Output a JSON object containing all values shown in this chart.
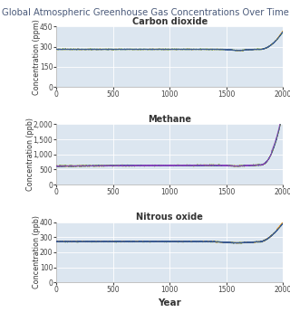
{
  "title": "Global Atmospheric Greenhouse Gas Concentrations Over Time",
  "title_color": "#4a5a7a",
  "title_fontsize": 7.2,
  "subplot_titles": [
    "Carbon dioxide",
    "Methane",
    "Nitrous oxide"
  ],
  "subplot_title_fontsize": 7,
  "xlabel": "Year",
  "xlabel_fontsize": 7.5,
  "ylabel_co2": "Concentration (ppm)",
  "ylabel_ch4": "Concentration (ppb)",
  "ylabel_n2o": "Concentration (ppb)",
  "ylabel_fontsize": 5.8,
  "bg_color": "#dce6f0",
  "fig_bg_color": "#ffffff",
  "line_blue": "#2855a0",
  "line_green": "#7db33a",
  "line_orange": "#f5a000",
  "line_purple": "#9040c0",
  "line_red": "#cc2020",
  "xmin": 0,
  "xmax": 2000,
  "co2_ylim": [
    0,
    450
  ],
  "co2_yticks": [
    0,
    150,
    300,
    450
  ],
  "ch4_ylim": [
    0,
    2000
  ],
  "ch4_yticks": [
    0,
    500,
    1000,
    1500,
    2000
  ],
  "n2o_ylim": [
    0,
    400
  ],
  "n2o_yticks": [
    0,
    100,
    200,
    300,
    400
  ],
  "xticks": [
    0,
    500,
    1000,
    1500,
    2000
  ],
  "tick_fontsize": 5.5,
  "grid_color": "#ffffff",
  "spine_color": "#aaaaaa"
}
